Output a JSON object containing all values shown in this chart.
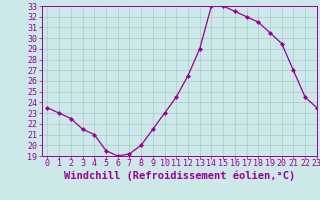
{
  "x": [
    0,
    1,
    2,
    3,
    4,
    5,
    6,
    7,
    8,
    9,
    10,
    11,
    12,
    13,
    14,
    15,
    16,
    17,
    18,
    19,
    20,
    21,
    22,
    23
  ],
  "y": [
    23.5,
    23.0,
    22.5,
    21.5,
    21.0,
    19.5,
    19.0,
    19.2,
    20.0,
    21.5,
    23.0,
    24.5,
    26.5,
    29.0,
    33.0,
    33.0,
    32.5,
    32.0,
    31.5,
    30.5,
    29.5,
    27.0,
    24.5,
    23.5
  ],
  "line_color": "#990099",
  "marker": "D",
  "marker_size": 2.0,
  "line_width": 0.9,
  "bg_color": "#cce8e8",
  "grid_color": "#aacccc",
  "xlabel": "Windchill (Refroidissement éolien,°C)",
  "xlabel_fontsize": 7.5,
  "ylim": [
    19,
    33
  ],
  "xlim": [
    -0.5,
    23
  ],
  "yticks": [
    19,
    20,
    21,
    22,
    23,
    24,
    25,
    26,
    27,
    28,
    29,
    30,
    31,
    32,
    33
  ],
  "xticks": [
    0,
    1,
    2,
    3,
    4,
    5,
    6,
    7,
    8,
    9,
    10,
    11,
    12,
    13,
    14,
    15,
    16,
    17,
    18,
    19,
    20,
    21,
    22,
    23
  ],
  "tick_fontsize": 6.0,
  "tick_color": "#990099",
  "spine_color": "#990099",
  "title_color": "#990099"
}
